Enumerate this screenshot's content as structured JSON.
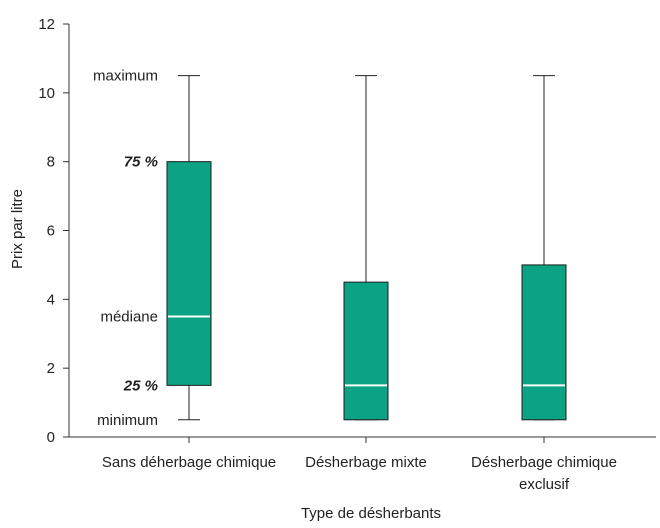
{
  "chart_data": {
    "type": "boxplot",
    "title": "",
    "xlabel": "Type de désherbants",
    "ylabel": "Prix par litre",
    "ylim": [
      0,
      12
    ],
    "yticks": [
      0,
      2,
      4,
      6,
      8,
      10,
      12
    ],
    "grid": false,
    "box_color": "#0ba383",
    "median_color": "#ffffff",
    "categories": [
      {
        "lines": [
          "Sans déherbage chimique"
        ]
      },
      {
        "lines": [
          "Désherbage mixte"
        ]
      },
      {
        "lines": [
          "Désherbage chimique",
          "exclusif"
        ]
      }
    ],
    "boxes": [
      {
        "min": 0.5,
        "q1": 1.5,
        "median": 3.5,
        "q3": 8,
        "max": 10.5
      },
      {
        "min": 0.5,
        "q1": 0.5,
        "median": 1.5,
        "q3": 4.5,
        "max": 10.5
      },
      {
        "min": 0.5,
        "q1": 0.5,
        "median": 1.5,
        "q3": 5,
        "max": 10.5
      }
    ],
    "annotations": [
      {
        "text": "maximum",
        "y": 10.5,
        "style": "normal"
      },
      {
        "text": "75 %",
        "y": 8,
        "style": "bold-italic"
      },
      {
        "text": "médiane",
        "y": 3.5,
        "style": "normal"
      },
      {
        "text": "25 %",
        "y": 1.5,
        "style": "bold-italic"
      },
      {
        "text": "minimum",
        "y": 0.5,
        "style": "normal"
      }
    ]
  }
}
